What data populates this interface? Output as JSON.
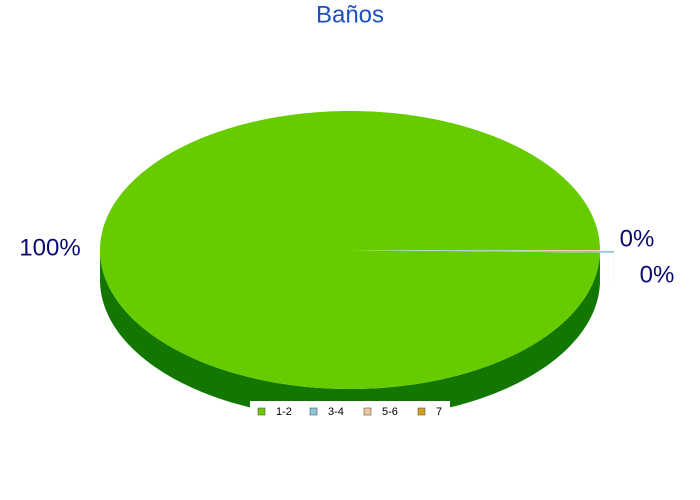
{
  "chart_data": {
    "type": "pie3d",
    "title": "Baños",
    "categories": [
      "1-2",
      "3-4",
      "5-6",
      "7"
    ],
    "values": [
      99.7,
      0.2,
      0.1,
      0
    ],
    "value_labels": [
      "100%",
      "0%",
      "0%",
      null
    ],
    "colors": [
      "#66cc00",
      "#88c8d8",
      "#f0c8a0",
      "#d4a020"
    ],
    "side_colors": [
      "#117700",
      "#226f7a",
      "#b08060",
      "#906010"
    ],
    "legend": "bottom"
  }
}
